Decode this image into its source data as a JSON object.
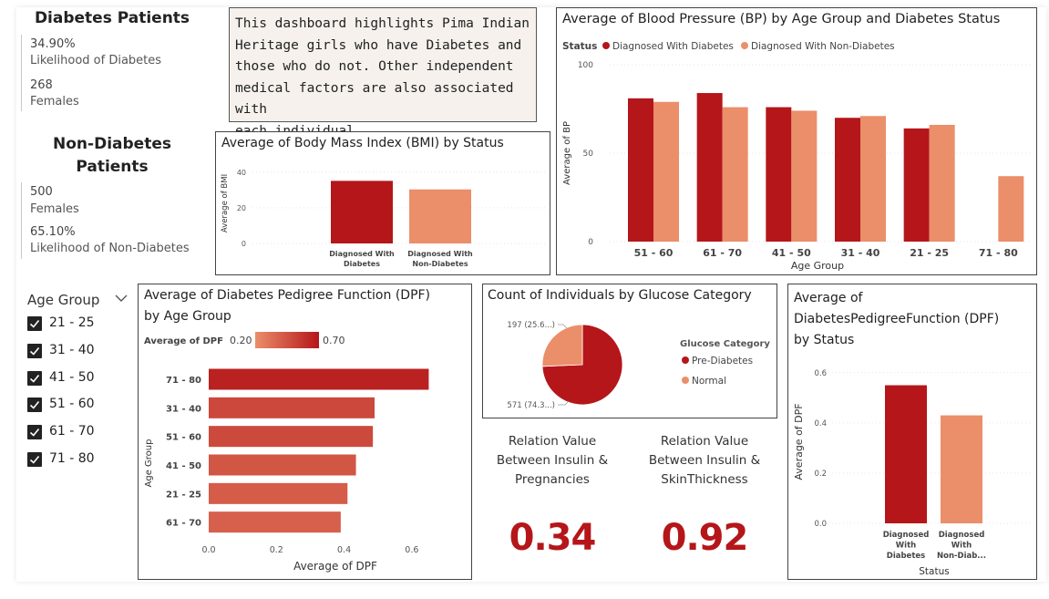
{
  "colors": {
    "diabetes": "#b5161a",
    "non_diabetes": "#eb8e6a",
    "dpf_low": "#eb8e6a",
    "dpf_high": "#b5161a"
  },
  "diabetes_kpis": {
    "heading": "Diabetes Patients",
    "likelihood_value": "34.90%",
    "likelihood_label": "Likelihood of Diabetes",
    "count_value": "268",
    "count_label": "Females"
  },
  "non_diabetes_kpis": {
    "heading_line1": "Non-Diabetes",
    "heading_line2": "Patients",
    "count_value": "500",
    "count_label": "Females",
    "likelihood_value": "65.10%",
    "likelihood_label": "Likelihood of Non-Diabetes"
  },
  "description": {
    "lines": [
      "This dashboard highlights Pima Indian",
      "Heritage girls who have Diabetes and",
      "those who do not. Other independent",
      "medical factors are also associated with",
      "each individual."
    ]
  },
  "age_slicer": {
    "title": "Age Group",
    "icon": "chevron-down-icon",
    "options": [
      {
        "label": "21 - 25",
        "checked": true
      },
      {
        "label": "31 - 40",
        "checked": true
      },
      {
        "label": "41 - 50",
        "checked": true
      },
      {
        "label": "51 - 60",
        "checked": true
      },
      {
        "label": "61 - 70",
        "checked": true
      },
      {
        "label": "71 - 80",
        "checked": true
      }
    ]
  },
  "relations": [
    {
      "label_lines": [
        "Relation Value",
        "Between Insulin &",
        "Pregnancies"
      ],
      "value": "0.34"
    },
    {
      "label_lines": [
        "Relation Value",
        "Between Insulin &",
        "SkinThickness"
      ],
      "value": "0.92"
    }
  ],
  "chart_data": [
    {
      "id": "bmi",
      "type": "bar",
      "title": "Average of Body Mass Index (BMI) by Status",
      "ylabel": "Average of BMI",
      "xlabel": "",
      "ylim": [
        0,
        45
      ],
      "yticks": [
        "0",
        "20",
        "40"
      ],
      "yticks_values": [
        0,
        20,
        40
      ],
      "categories": [
        [
          "Diagnosed With",
          "Diabetes"
        ],
        [
          "Diagnosed With",
          "Non-Diabetes"
        ]
      ],
      "values": [
        35.1,
        30.3
      ],
      "grid": true
    },
    {
      "id": "bp",
      "type": "bar",
      "title": "Average of Blood Pressure (BP) by Age Group and Diabetes Status",
      "legend_title": "Status",
      "legend_position": "top-left",
      "xlabel": "Age Group",
      "ylabel": "Average of BP",
      "ylim": [
        0,
        100
      ],
      "yticks": [
        "0",
        "50",
        "100"
      ],
      "yticks_values": [
        0,
        50,
        100
      ],
      "categories": [
        "51 - 60",
        "61 - 70",
        "41 - 50",
        "31 - 40",
        "21 - 25",
        "71 - 80"
      ],
      "series": [
        {
          "name": "Diagnosed With Diabetes",
          "values": [
            81,
            84,
            76,
            70,
            64,
            null
          ]
        },
        {
          "name": "Diagnosed With Non-Diabetes",
          "values": [
            79,
            76,
            74,
            71,
            66,
            37
          ]
        }
      ],
      "grid": true
    },
    {
      "id": "dpf_age",
      "type": "bar",
      "orientation": "horizontal",
      "title_line1": "Average of Diabetes Pedigree Function (DPF)",
      "title_line2": "by Age Group",
      "legend_label": "Average of DPF",
      "legend_min": "0.20",
      "legend_max": "0.70",
      "xlabel": "Average of DPF",
      "ylabel": "Age Group",
      "xlim": [
        0,
        0.7
      ],
      "xticks": [
        "0.0",
        "0.2",
        "0.4",
        "0.6"
      ],
      "xticks_values": [
        0,
        0.2,
        0.4,
        0.6
      ],
      "categories": [
        "71 - 80",
        "31 - 40",
        "51 - 60",
        "41 - 50",
        "21 - 25",
        "61 - 70"
      ],
      "values": [
        0.65,
        0.49,
        0.485,
        0.435,
        0.41,
        0.39
      ]
    },
    {
      "id": "glucose",
      "type": "pie",
      "title": "Count of Individuals by Glucose Category",
      "legend_title": "Glucose Category",
      "legend_position": "right",
      "categories": [
        "Pre-Diabetes",
        "Normal"
      ],
      "values": [
        571,
        197
      ],
      "data_labels": [
        "571 (74.3...)",
        "197 (25.6...)"
      ]
    },
    {
      "id": "dpf_status",
      "type": "bar",
      "title_lines": [
        "Average of",
        "DiabetesPedigreeFunction (DPF)",
        "by Status"
      ],
      "xlabel": "Status",
      "ylabel": "Average of DPF",
      "ylim": [
        0,
        0.65
      ],
      "yticks": [
        "0.0",
        "0.2",
        "0.4",
        "0.6"
      ],
      "yticks_values": [
        0,
        0.2,
        0.4,
        0.6
      ],
      "categories": [
        [
          "Diagnosed",
          "With",
          "Diabetes"
        ],
        [
          "Diagnosed",
          "With",
          "Non-Diab..."
        ]
      ],
      "values": [
        0.55,
        0.43
      ],
      "grid": true
    }
  ]
}
